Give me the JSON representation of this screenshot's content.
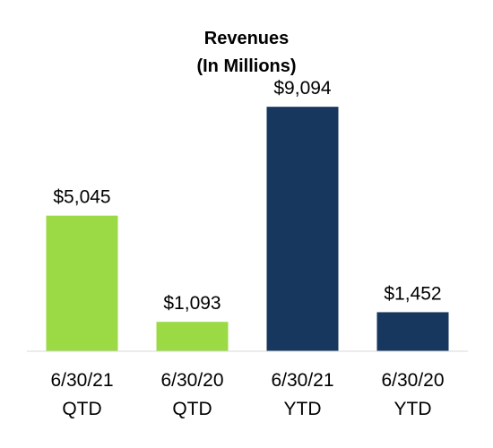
{
  "chart_data": {
    "type": "bar",
    "title": "Revenues",
    "subtitle": "(In Millions)",
    "xlabel": "",
    "ylabel": "",
    "categories": [
      {
        "line1": "6/30/21",
        "line2": "QTD"
      },
      {
        "line1": "6/30/20",
        "line2": "QTD"
      },
      {
        "line1": "6/30/21",
        "line2": "YTD"
      },
      {
        "line1": "6/30/20",
        "line2": "YTD"
      }
    ],
    "values": [
      5045,
      1093,
      9094,
      1452
    ],
    "data_labels": [
      "$5,045",
      "$1,093",
      "$9,094",
      "$1,452"
    ],
    "bar_colors": [
      "#9bd945",
      "#9bd945",
      "#17375e",
      "#17375e"
    ],
    "ylim": [
      0,
      10000
    ],
    "grid": false,
    "legend": "none",
    "axis_color": "#d9d9d9"
  }
}
